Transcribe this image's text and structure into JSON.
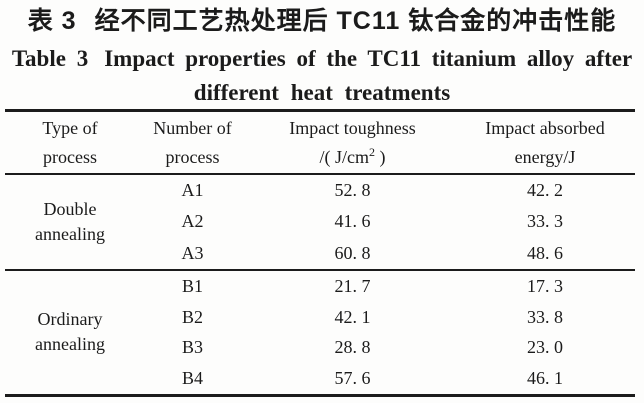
{
  "page": {
    "title_zh_label": "表 3",
    "title_zh_text": "经不同工艺热处理后 TC11 钛合金的冲击性能",
    "title_en_label": "Table 3",
    "title_en_text": "Impact properties of the TC11 titanium alloy after",
    "title_en_line2": "different heat treatments"
  },
  "table": {
    "columns": [
      {
        "line1": "Type of",
        "line2": "process"
      },
      {
        "line1": "Number of",
        "line2": "process"
      },
      {
        "line1": "Impact toughness",
        "unit_prefix": "/( J/cm",
        "unit_sup": "2",
        "unit_suffix": " )"
      },
      {
        "line1": "Impact absorbed",
        "line2": "energy/J"
      }
    ],
    "groups": [
      {
        "type_line1": "Double",
        "type_line2": "annealing",
        "rows": [
          {
            "number": "A1",
            "toughness": "52. 8",
            "energy": "42. 2"
          },
          {
            "number": "A2",
            "toughness": "41. 6",
            "energy": "33. 3"
          },
          {
            "number": "A3",
            "toughness": "60. 8",
            "energy": "48. 6"
          }
        ]
      },
      {
        "type_line1": "Ordinary",
        "type_line2": "annealing",
        "rows": [
          {
            "number": "B1",
            "toughness": "21. 7",
            "energy": "17. 3"
          },
          {
            "number": "B2",
            "toughness": "42. 1",
            "energy": "33. 8"
          },
          {
            "number": "B3",
            "toughness": "28. 8",
            "energy": "23. 0"
          },
          {
            "number": "B4",
            "toughness": "57. 6",
            "energy": "46. 1"
          }
        ]
      }
    ]
  }
}
